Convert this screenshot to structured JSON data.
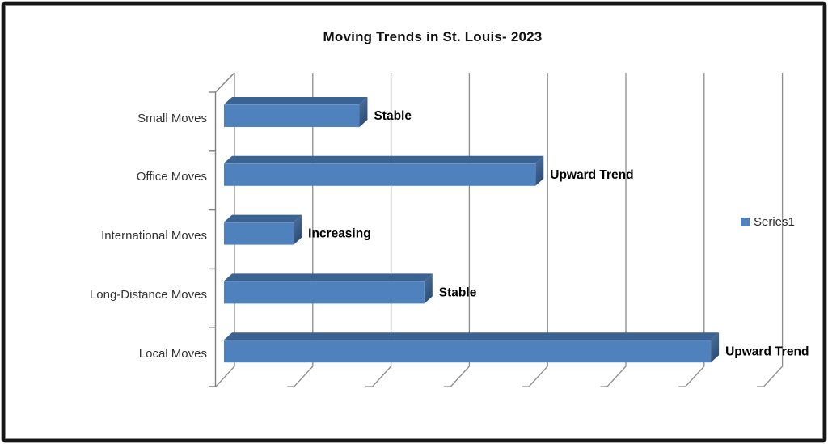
{
  "chart_data": {
    "type": "bar",
    "style": "3d-horizontal-bar",
    "orientation": "horizontal",
    "title": "Moving Trends in St. Louis- 2023",
    "categories": [
      "Small Moves",
      "Office Moves",
      "International Moves",
      "Long-Distance Moves",
      "Local Moves"
    ],
    "series": [
      {
        "name": "Series1",
        "values": [
          1.73,
          3.98,
          0.89,
          2.56,
          6.22
        ]
      }
    ],
    "bar_labels": [
      "Stable",
      "Upward Trend",
      "Increasing",
      "Stable",
      "Upward Trend"
    ],
    "value_axis": {
      "min": 0,
      "max": 7,
      "gridline_interval": 1,
      "tick_labels_visible": false
    },
    "category_axis": {
      "tick_marks": true,
      "labels_visible": true
    },
    "legend": {
      "position": "right",
      "entries": [
        "Series1"
      ]
    },
    "grid": true,
    "colors": {
      "bar_front": "#4f81bd",
      "bar_top": "#3a6292",
      "bar_end_light": "#4e739f",
      "bar_end_dark": "#2b4d78",
      "gridline": "#8c8c8c",
      "axis": "#7f7f7f",
      "data_label": "#000000",
      "category_label": "#333333",
      "title": "#111111",
      "legend_text": "#2b2b2b"
    }
  }
}
